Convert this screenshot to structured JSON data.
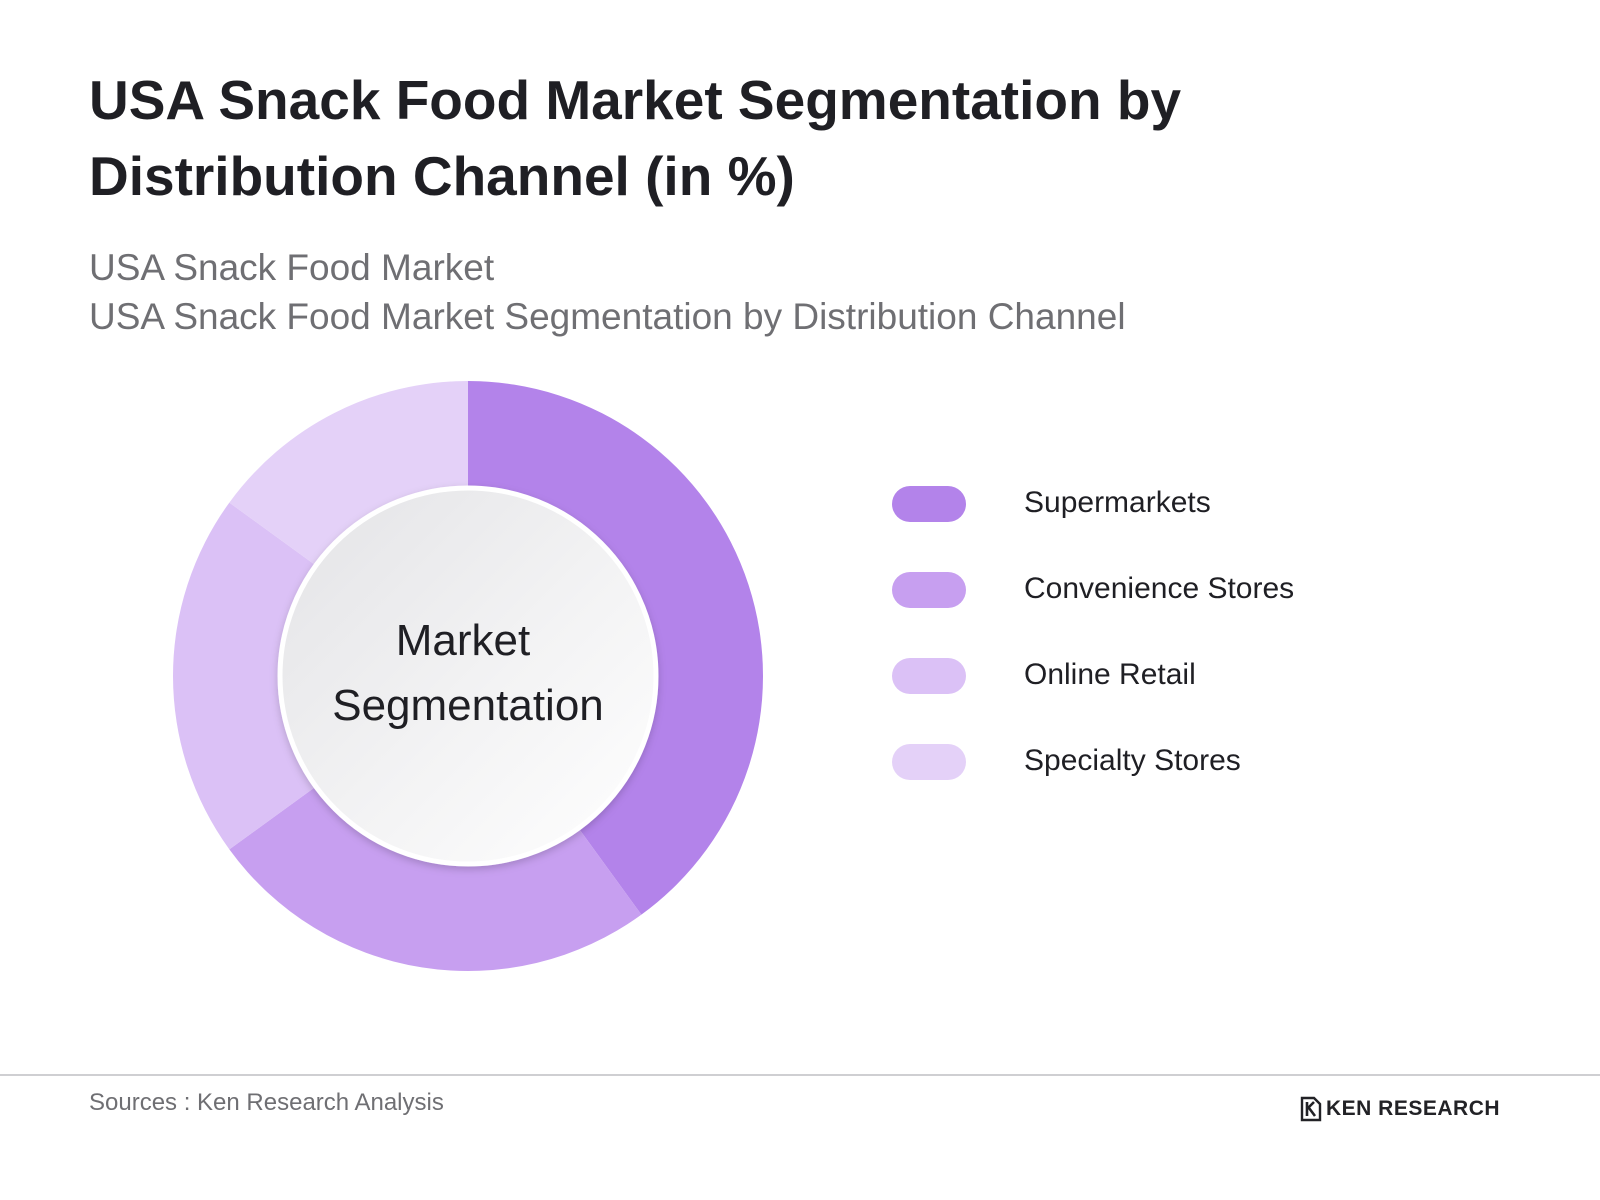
{
  "header": {
    "title": "USA Snack Food Market Segmentation by Distribution Channel (in %)",
    "subtitle_1": "USA Snack Food Market",
    "subtitle_2": "USA Snack Food Market Segmentation by Distribution Channel"
  },
  "chart_data": {
    "type": "pie",
    "variant": "donut",
    "title": "USA Snack Food Market Segmentation by Distribution Channel (in %)",
    "center_label_line1": "Market",
    "center_label_line2": "Segmentation",
    "categories": [
      "Supermarkets",
      "Convenience Stores",
      "Online Retail",
      "Specialty Stores"
    ],
    "values": [
      40,
      25,
      20,
      15
    ],
    "unit": "%",
    "colors": [
      "#b383ea",
      "#c79ff0",
      "#dbc1f6",
      "#e4d1f8"
    ],
    "legend_position": "right"
  },
  "footer": {
    "sources": "Sources : Ken Research Analysis",
    "brand": "KEN RESEARCH",
    "brand_icon": "ken-research-logo-icon"
  }
}
